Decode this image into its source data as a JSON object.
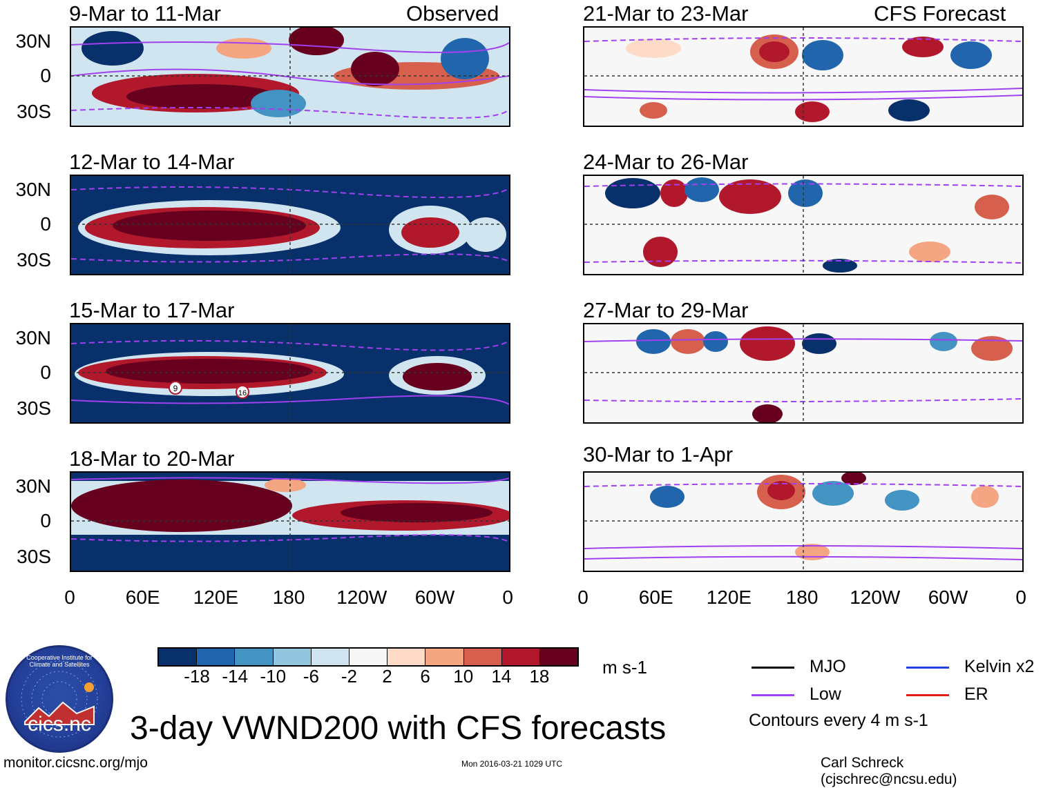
{
  "observed_label": "Observed",
  "forecast_label": "CFS Forecast",
  "left_panels": [
    {
      "title": "9-Mar to 11-Mar"
    },
    {
      "title": "12-Mar to 14-Mar"
    },
    {
      "title": "15-Mar to 17-Mar"
    },
    {
      "title": "18-Mar to 20-Mar"
    }
  ],
  "right_panels": [
    {
      "title": "21-Mar to 23-Mar"
    },
    {
      "title": "24-Mar to 26-Mar"
    },
    {
      "title": "27-Mar to 29-Mar"
    },
    {
      "title": "30-Mar to 1-Apr"
    }
  ],
  "markers": [
    "9",
    "16"
  ],
  "lat_labels": [
    "30N",
    "0",
    "30S"
  ],
  "lon_labels": [
    "0",
    "60E",
    "120E",
    "180",
    "120W",
    "60W",
    "0"
  ],
  "colorbar": {
    "colors": [
      "#08306b",
      "#2166ac",
      "#4393c3",
      "#92c5de",
      "#d1e5f0",
      "#f7f7f7",
      "#fddbc7",
      "#f4a582",
      "#d6604d",
      "#b2182b",
      "#67001f"
    ],
    "labels": [
      "-18",
      "-14",
      "-10",
      "-6",
      "-2",
      "2",
      "6",
      "10",
      "14",
      "18"
    ],
    "units": "m s-1"
  },
  "legend": [
    {
      "label": "MJO",
      "color": "#000000"
    },
    {
      "label": "Kelvin x2",
      "color": "#2040e0"
    },
    {
      "label": "Low",
      "color": "#a040f0"
    },
    {
      "label": "ER",
      "color": "#e02010"
    }
  ],
  "contour_note": "Contours every 4 m s-1",
  "main_title": "3-day VWND200 with CFS forecasts",
  "logo_text": "cics.nc",
  "logo_ring_text": "Cooperative Institute for Climate and Satellites",
  "footer": {
    "url": "monitor.cicsnc.org/mjo",
    "timestamp": "Mon 2016-03-21 1029 UTC",
    "credit": "Carl Schreck (cjschrec@ncsu.edu)"
  },
  "chart_data": {
    "type": "heatmap",
    "variable": "VWND200",
    "title": "3-day VWND200 with CFS forecasts",
    "units": "m s-1",
    "contour_interval": 4,
    "x_ticks": [
      "0",
      "60E",
      "120E",
      "180",
      "120W",
      "60W",
      "0"
    ],
    "y_ticks": [
      "30N",
      "0",
      "30S"
    ],
    "color_levels": [
      -18,
      -14,
      -10,
      -6,
      -2,
      2,
      6,
      10,
      14,
      18
    ],
    "panels": [
      {
        "period": "9-Mar to 11-Mar",
        "source": "Observed"
      },
      {
        "period": "12-Mar to 14-Mar",
        "source": "Observed"
      },
      {
        "period": "15-Mar to 17-Mar",
        "source": "Observed"
      },
      {
        "period": "18-Mar to 20-Mar",
        "source": "Observed"
      },
      {
        "period": "21-Mar to 23-Mar",
        "source": "CFS Forecast"
      },
      {
        "period": "24-Mar to 26-Mar",
        "source": "CFS Forecast"
      },
      {
        "period": "27-Mar to 29-Mar",
        "source": "CFS Forecast"
      },
      {
        "period": "30-Mar to 1-Apr",
        "source": "CFS Forecast"
      }
    ]
  }
}
